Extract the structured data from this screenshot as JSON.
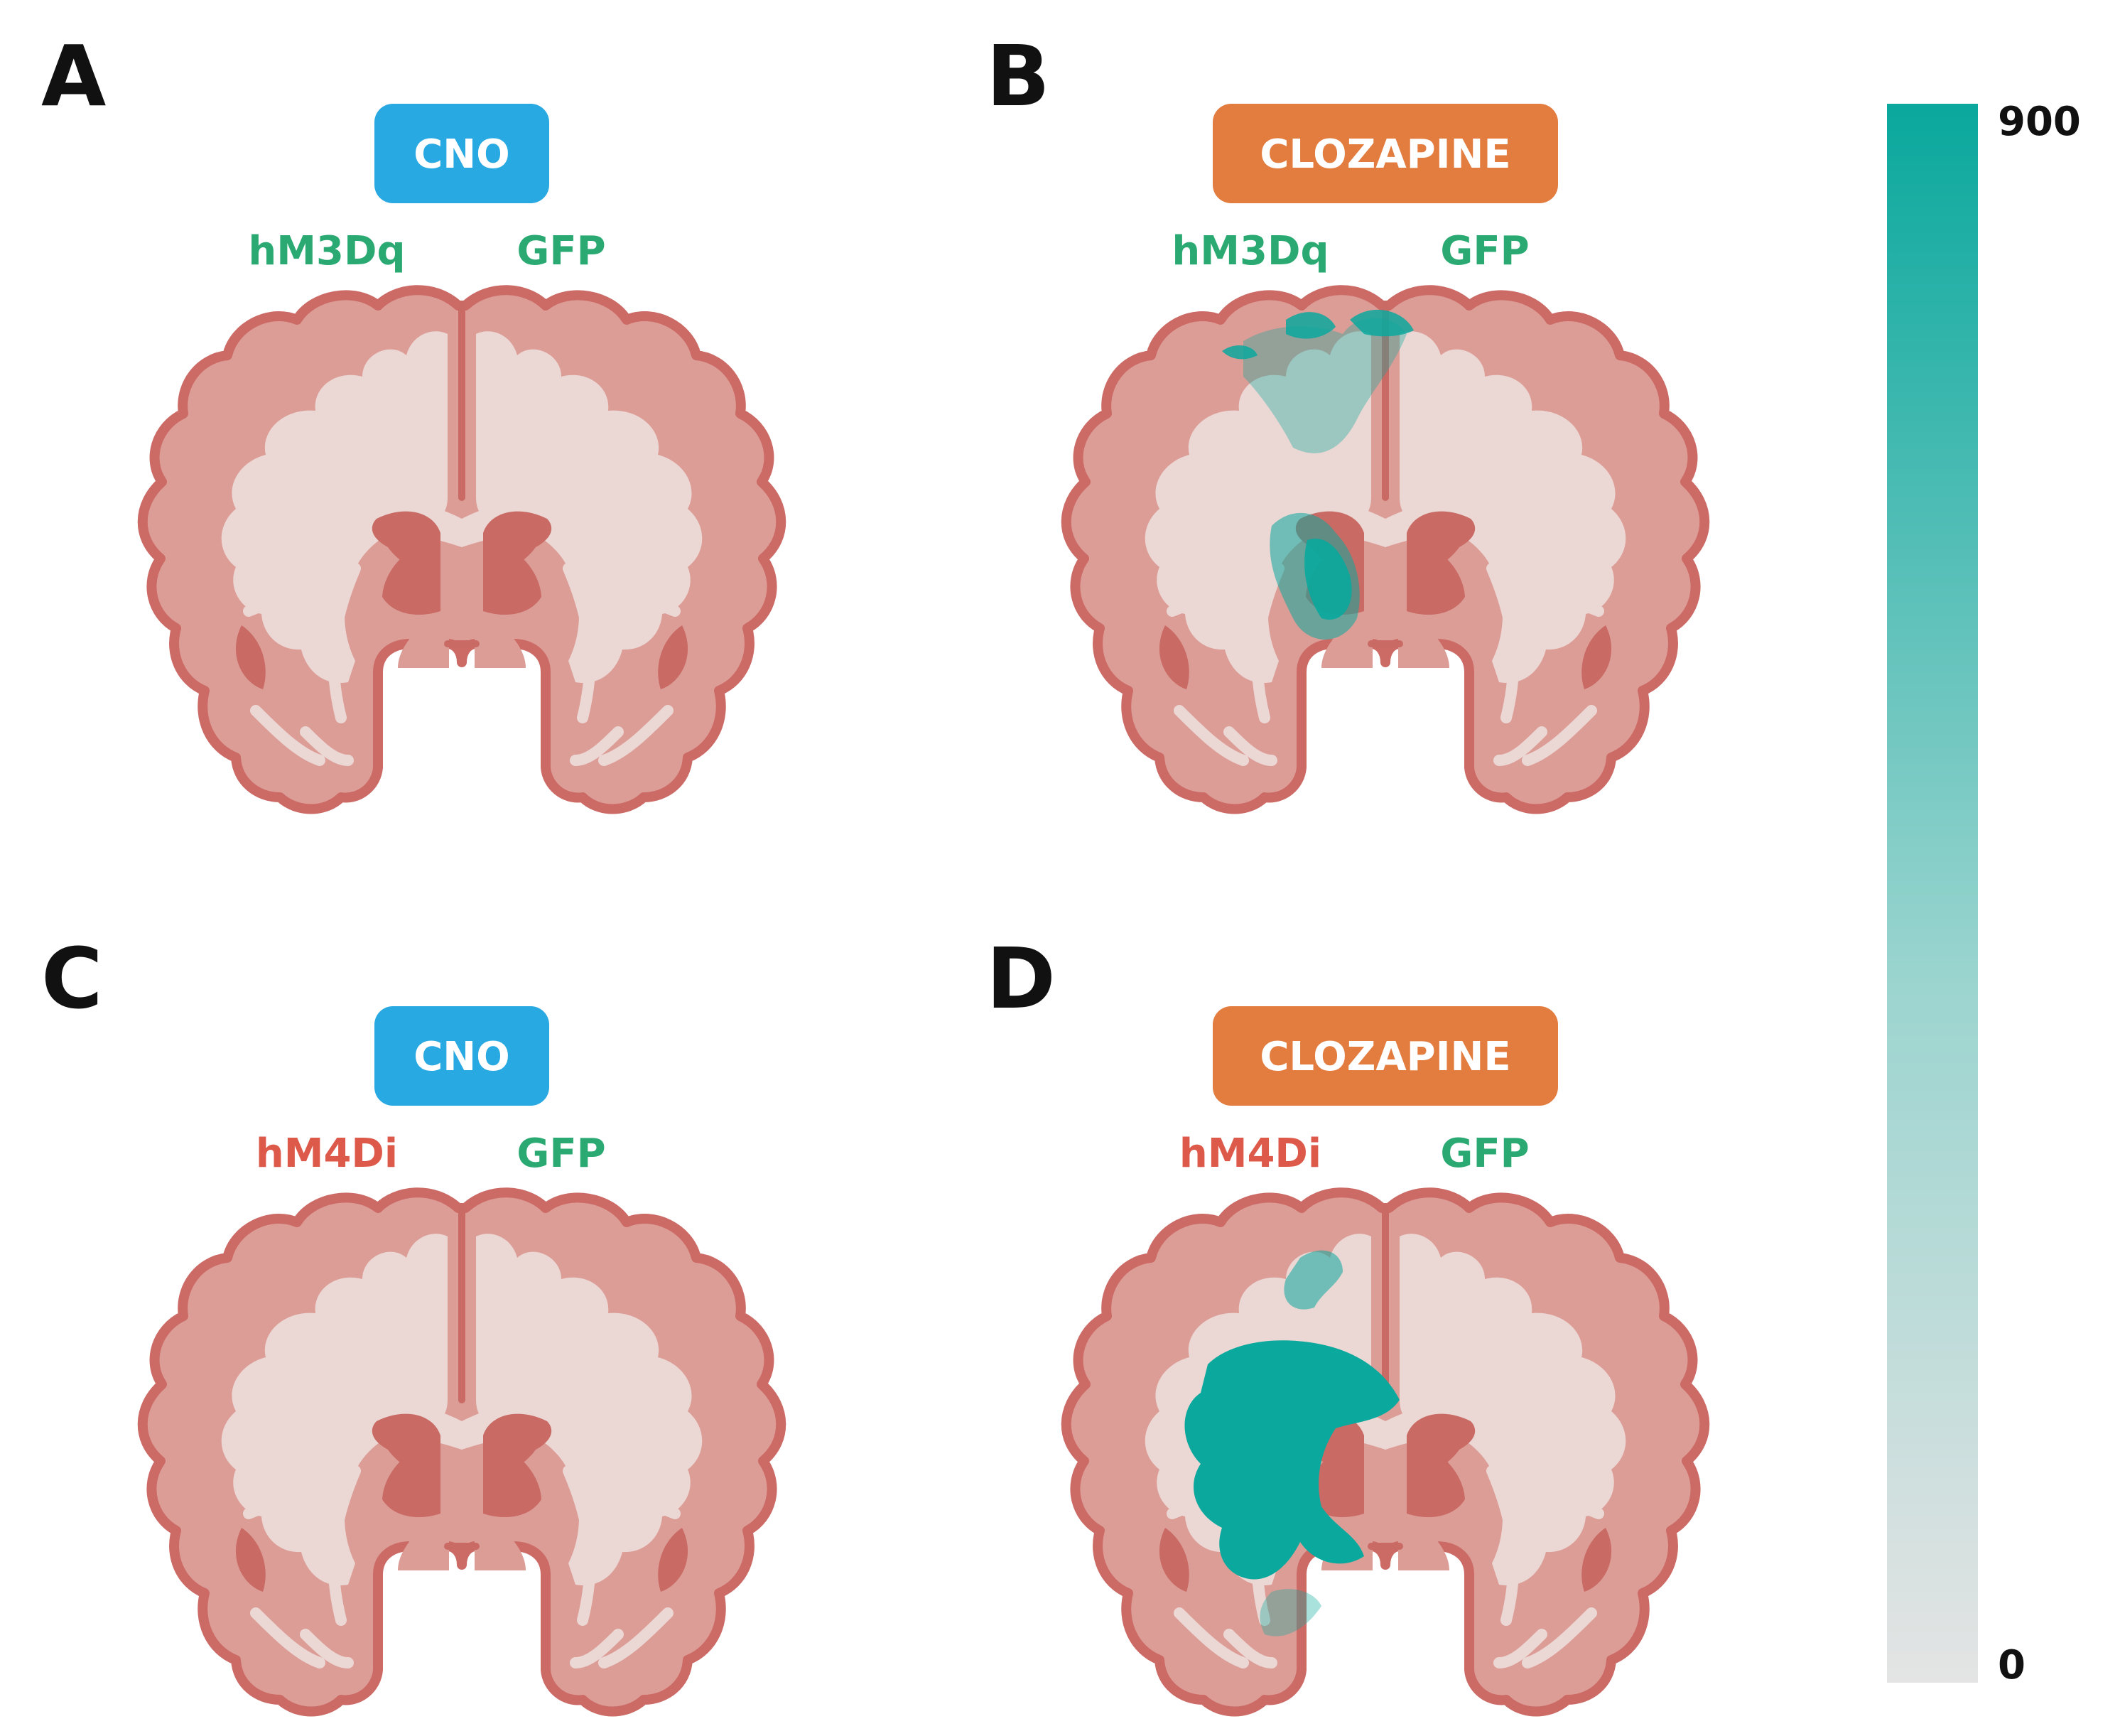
{
  "colors": {
    "cno": "#29a9e1",
    "clozapine": "#e37c3f",
    "excitatory_label": "#2aaa72",
    "inhibitory_label": "#dd5a4a",
    "control_label": "#2aaa72",
    "brain_outline": "#cc6a66",
    "brain_gray": "#dd9d97",
    "brain_white": "#ebd7d4",
    "brain_deep": "#c96a65",
    "activation_high": "#0aa89d",
    "activation_low": "#e4e4e4"
  },
  "panels": [
    {
      "letter": "A",
      "drug": "CNO",
      "drug_color_key": "cno",
      "left_label": "hM3Dq",
      "left_label_color_key": "excitatory_label",
      "right_label": "GFP",
      "right_label_color_key": "control_label",
      "activation_pattern": "none"
    },
    {
      "letter": "B",
      "drug": "CLOZAPINE",
      "drug_color_key": "clozapine",
      "left_label": "hM3Dq",
      "left_label_color_key": "excitatory_label",
      "right_label": "GFP",
      "right_label_color_key": "control_label",
      "activation_pattern": "moderate"
    },
    {
      "letter": "C",
      "drug": "CNO",
      "drug_color_key": "cno",
      "left_label": "hM4Di",
      "left_label_color_key": "inhibitory_label",
      "right_label": "GFP",
      "right_label_color_key": "control_label",
      "activation_pattern": "none"
    },
    {
      "letter": "D",
      "drug": "CLOZAPINE",
      "drug_color_key": "clozapine",
      "left_label": "hM4Di",
      "left_label_color_key": "inhibitory_label",
      "right_label": "GFP",
      "right_label_color_key": "control_label",
      "activation_pattern": "strong"
    }
  ],
  "colorbar": {
    "max_label": "900",
    "min_label": "0",
    "max": 900,
    "min": 0
  }
}
